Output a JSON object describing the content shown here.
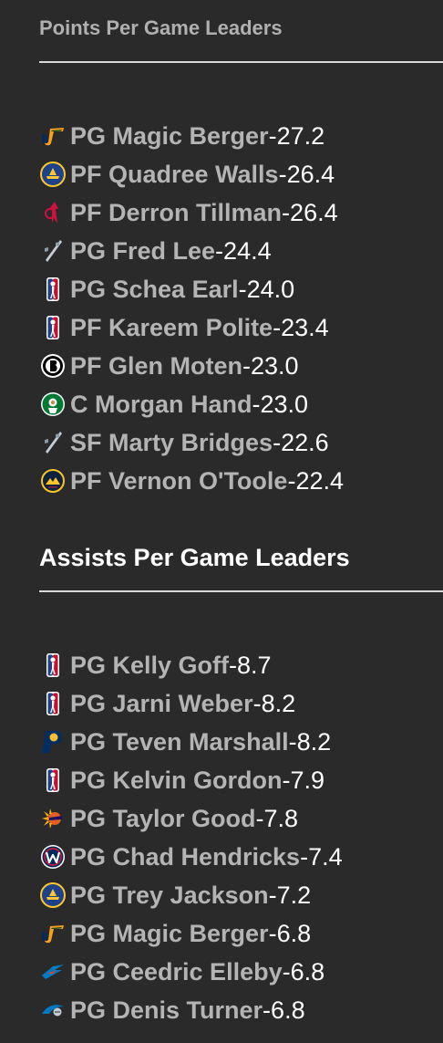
{
  "points": {
    "title": "Points Per Game Leaders",
    "rows": [
      {
        "team_icon": "jazz-icon",
        "player": "PG Magic Berger",
        "value": "27.2"
      },
      {
        "team_icon": "warriors-icon",
        "player": "PF Quadree Walls",
        "value": "26.4"
      },
      {
        "team_icon": "rockets-icon",
        "player": "PF Derron Tillman",
        "value": "26.4"
      },
      {
        "team_icon": "spurs-icon",
        "player": "PG Fred Lee",
        "value": "24.4"
      },
      {
        "team_icon": "nba-icon",
        "player": "PG Schea Earl",
        "value": "24.0"
      },
      {
        "team_icon": "nba-icon",
        "player": "PF Kareem Polite",
        "value": "23.4"
      },
      {
        "team_icon": "nets-icon",
        "player": "PF Glen Moten",
        "value": "23.0"
      },
      {
        "team_icon": "celtics-icon",
        "player": "C Morgan Hand",
        "value": "23.0"
      },
      {
        "team_icon": "spurs-icon",
        "player": "SF Marty Bridges",
        "value": "22.6"
      },
      {
        "team_icon": "nuggets-icon",
        "player": "PF Vernon O'Toole",
        "value": "22.4"
      }
    ]
  },
  "assists": {
    "title": "Assists Per Game Leaders",
    "rows": [
      {
        "team_icon": "nba-icon",
        "player": "PG Kelly Goff",
        "value": "8.7"
      },
      {
        "team_icon": "nba-icon",
        "player": "PG Jarni Weber",
        "value": "8.2"
      },
      {
        "team_icon": "pacers-icon",
        "player": "PG Teven Marshall",
        "value": "8.2"
      },
      {
        "team_icon": "nba-icon",
        "player": "PG Kelvin Gordon",
        "value": "7.9"
      },
      {
        "team_icon": "suns-icon",
        "player": "PG Taylor Good",
        "value": "7.8"
      },
      {
        "team_icon": "wizards-icon",
        "player": "PG Chad Hendricks",
        "value": "7.4"
      },
      {
        "team_icon": "warriors-icon",
        "player": "PG Trey Jackson",
        "value": "7.2"
      },
      {
        "team_icon": "jazz-icon",
        "player": "PG Magic Berger",
        "value": "6.8"
      },
      {
        "team_icon": "thunder-icon",
        "player": "PG Ceedric Elleby",
        "value": "6.8"
      },
      {
        "team_icon": "magic-icon",
        "player": "PG Denis Turner",
        "value": "6.8"
      }
    ]
  },
  "separator": "-",
  "colors": {
    "background": "#2a2a2a",
    "player_text": "#b4b4b4",
    "stat_text": "#ffffff",
    "rule": "#d8d8d8"
  }
}
